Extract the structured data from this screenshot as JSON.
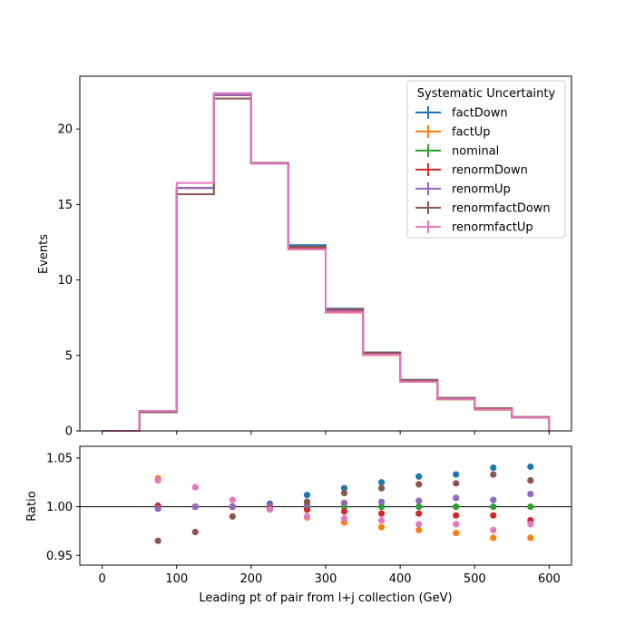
{
  "chart_data": [
    {
      "type": "step",
      "panel": "main",
      "ylabel": "Events",
      "ylim": [
        0,
        23.5
      ],
      "xlim": [
        -30,
        630
      ],
      "yticks": [
        0,
        5,
        10,
        15,
        20
      ],
      "bin_edges": [
        0,
        50,
        100,
        150,
        200,
        250,
        300,
        350,
        400,
        450,
        500,
        550,
        600
      ],
      "legend": {
        "title": "Systematic Uncertainty",
        "placement": "top-right"
      },
      "series": [
        {
          "name": "factDown",
          "color": "#1f77b4",
          "values": [
            0.0,
            1.29,
            16.1,
            22.25,
            17.75,
            12.3,
            8.1,
            5.2,
            3.38,
            2.18,
            1.5,
            0.92
          ]
        },
        {
          "name": "factUp",
          "color": "#ff7f0e",
          "values": [
            0.0,
            1.29,
            16.1,
            22.25,
            17.75,
            12.02,
            7.84,
            5.02,
            3.25,
            2.08,
            1.4,
            0.87
          ]
        },
        {
          "name": "nominal",
          "color": "#2ca02c",
          "values": [
            0.0,
            1.29,
            16.1,
            22.25,
            17.75,
            12.15,
            7.97,
            5.1,
            3.31,
            2.14,
            1.45,
            0.9
          ]
        },
        {
          "name": "renormDown",
          "color": "#d62728",
          "values": [
            0.0,
            1.3,
            16.1,
            22.25,
            17.75,
            12.12,
            7.92,
            5.06,
            3.29,
            2.12,
            1.43,
            0.89
          ]
        },
        {
          "name": "renormUp",
          "color": "#9467bd",
          "values": [
            0.0,
            1.29,
            16.1,
            22.25,
            17.75,
            12.18,
            8.0,
            5.12,
            3.33,
            2.16,
            1.46,
            0.91
          ]
        },
        {
          "name": "renormfactDown",
          "color": "#8c564b",
          "values": [
            0.0,
            1.24,
            15.68,
            22.02,
            17.71,
            12.2,
            8.06,
            5.18,
            3.37,
            2.18,
            1.5,
            0.92
          ]
        },
        {
          "name": "renormfactUp",
          "color": "#e377c2",
          "values": [
            0.0,
            1.32,
            16.43,
            22.37,
            17.7,
            12.03,
            7.86,
            5.04,
            3.25,
            2.1,
            1.42,
            0.88
          ]
        }
      ]
    },
    {
      "type": "scatter",
      "panel": "ratio",
      "xlabel": "Leading pt of pair from l+j collection (GeV)",
      "ylabel": "Ratio",
      "ylim": [
        0.94,
        1.062
      ],
      "xlim": [
        -30,
        630
      ],
      "yticks": [
        0.95,
        1.0,
        1.05
      ],
      "xticks": [
        0,
        100,
        200,
        300,
        400,
        500,
        600
      ],
      "reference_line": 1.0,
      "x": [
        75,
        125,
        175,
        225,
        275,
        325,
        375,
        425,
        475,
        525,
        575
      ],
      "series": [
        {
          "name": "factDown",
          "color": "#1f77b4",
          "values": [
            0.998,
            1.0,
            1.0,
            1.003,
            1.012,
            1.019,
            1.025,
            1.031,
            1.033,
            1.04,
            1.041
          ]
        },
        {
          "name": "factUp",
          "color": "#ff7f0e",
          "values": [
            1.029,
            1.0,
            1.0,
            0.998,
            0.989,
            0.984,
            0.979,
            0.976,
            0.973,
            0.968,
            0.968
          ]
        },
        {
          "name": "nominal",
          "color": "#2ca02c",
          "values": [
            1.0,
            1.0,
            1.0,
            1.0,
            1.0,
            1.0,
            1.0,
            1.0,
            1.0,
            1.0,
            1.0
          ]
        },
        {
          "name": "renormDown",
          "color": "#d62728",
          "values": [
            1.001,
            1.0,
            1.0,
            0.999,
            0.997,
            0.995,
            0.993,
            0.993,
            0.991,
            0.991,
            0.986
          ]
        },
        {
          "name": "renormUp",
          "color": "#9467bd",
          "values": [
            0.998,
            1.0,
            1.0,
            1.001,
            1.002,
            1.004,
            1.005,
            1.006,
            1.009,
            1.007,
            1.013
          ]
        },
        {
          "name": "renormfactDown",
          "color": "#8c564b",
          "values": [
            0.965,
            0.974,
            0.99,
            0.998,
            1.005,
            1.014,
            1.019,
            1.023,
            1.024,
            1.033,
            1.027
          ]
        },
        {
          "name": "renormfactUp",
          "color": "#e377c2",
          "values": [
            1.027,
            1.02,
            1.007,
            0.997,
            0.99,
            0.988,
            0.986,
            0.982,
            0.982,
            0.976,
            0.982
          ]
        }
      ]
    }
  ]
}
